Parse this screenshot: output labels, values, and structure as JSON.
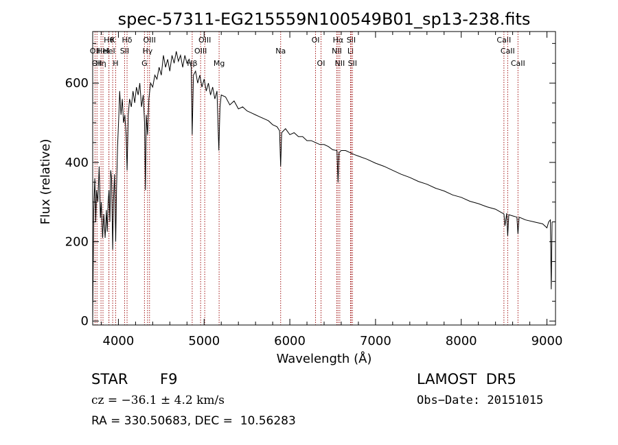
{
  "chart_data": {
    "type": "line",
    "title": "spec-57311-EG215559N100549B01_sp13-238.fits",
    "xlabel": "Wavelength (Å)",
    "ylabel": "Flux (relative)",
    "xlim": [
      3700,
      9100
    ],
    "ylim": [
      -10,
      730
    ],
    "x_ticks": [
      4000,
      5000,
      6000,
      7000,
      8000,
      9000
    ],
    "y_ticks": [
      0,
      200,
      400,
      600
    ],
    "grid": false,
    "line_color": "#000000",
    "marker_color": "#a01010",
    "series": [
      {
        "points": [
          [
            3700,
            0
          ],
          [
            3712,
            280
          ],
          [
            3725,
            360
          ],
          [
            3735,
            250
          ],
          [
            3745,
            330
          ],
          [
            3760,
            300
          ],
          [
            3775,
            390
          ],
          [
            3790,
            260
          ],
          [
            3800,
            300
          ],
          [
            3815,
            210
          ],
          [
            3830,
            270
          ],
          [
            3845,
            210
          ],
          [
            3860,
            280
          ],
          [
            3870,
            225
          ],
          [
            3880,
            300
          ],
          [
            3890,
            330
          ],
          [
            3900,
            250
          ],
          [
            3910,
            380
          ],
          [
            3920,
            360
          ],
          [
            3933,
            180
          ],
          [
            3942,
            300
          ],
          [
            3955,
            370
          ],
          [
            3968,
            200
          ],
          [
            3978,
            330
          ],
          [
            3990,
            440
          ],
          [
            4005,
            520
          ],
          [
            4015,
            580
          ],
          [
            4030,
            520
          ],
          [
            4045,
            560
          ],
          [
            4060,
            500
          ],
          [
            4075,
            520
          ],
          [
            4090,
            470
          ],
          [
            4101,
            380
          ],
          [
            4115,
            520
          ],
          [
            4130,
            560
          ],
          [
            4150,
            540
          ],
          [
            4170,
            580
          ],
          [
            4190,
            550
          ],
          [
            4210,
            590
          ],
          [
            4230,
            570
          ],
          [
            4250,
            600
          ],
          [
            4270,
            540
          ],
          [
            4290,
            570
          ],
          [
            4305,
            500
          ],
          [
            4315,
            330
          ],
          [
            4325,
            520
          ],
          [
            4340,
            470
          ],
          [
            4355,
            560
          ],
          [
            4375,
            600
          ],
          [
            4400,
            590
          ],
          [
            4425,
            620
          ],
          [
            4450,
            610
          ],
          [
            4475,
            640
          ],
          [
            4500,
            620
          ],
          [
            4525,
            670
          ],
          [
            4550,
            640
          ],
          [
            4575,
            660
          ],
          [
            4600,
            630
          ],
          [
            4625,
            670
          ],
          [
            4650,
            650
          ],
          [
            4675,
            680
          ],
          [
            4700,
            655
          ],
          [
            4725,
            670
          ],
          [
            4750,
            640
          ],
          [
            4775,
            670
          ],
          [
            4800,
            650
          ],
          [
            4825,
            660
          ],
          [
            4850,
            640
          ],
          [
            4861,
            470
          ],
          [
            4875,
            620
          ],
          [
            4900,
            630
          ],
          [
            4925,
            600
          ],
          [
            4950,
            620
          ],
          [
            4975,
            590
          ],
          [
            5000,
            610
          ],
          [
            5025,
            580
          ],
          [
            5050,
            600
          ],
          [
            5075,
            570
          ],
          [
            5100,
            590
          ],
          [
            5125,
            560
          ],
          [
            5150,
            580
          ],
          [
            5172,
            430
          ],
          [
            5185,
            540
          ],
          [
            5200,
            570
          ],
          [
            5250,
            565
          ],
          [
            5300,
            545
          ],
          [
            5350,
            555
          ],
          [
            5400,
            535
          ],
          [
            5450,
            540
          ],
          [
            5500,
            530
          ],
          [
            5550,
            525
          ],
          [
            5600,
            520
          ],
          [
            5650,
            515
          ],
          [
            5700,
            510
          ],
          [
            5750,
            505
          ],
          [
            5800,
            495
          ],
          [
            5850,
            490
          ],
          [
            5880,
            480
          ],
          [
            5893,
            390
          ],
          [
            5905,
            475
          ],
          [
            5950,
            485
          ],
          [
            6000,
            470
          ],
          [
            6050,
            475
          ],
          [
            6100,
            465
          ],
          [
            6150,
            465
          ],
          [
            6200,
            455
          ],
          [
            6250,
            455
          ],
          [
            6300,
            450
          ],
          [
            6350,
            445
          ],
          [
            6400,
            445
          ],
          [
            6450,
            440
          ],
          [
            6500,
            432
          ],
          [
            6550,
            430
          ],
          [
            6563,
            350
          ],
          [
            6575,
            425
          ],
          [
            6600,
            430
          ],
          [
            6650,
            430
          ],
          [
            6700,
            425
          ],
          [
            6750,
            420
          ],
          [
            6800,
            416
          ],
          [
            6900,
            408
          ],
          [
            7000,
            398
          ],
          [
            7100,
            390
          ],
          [
            7200,
            380
          ],
          [
            7300,
            370
          ],
          [
            7400,
            362
          ],
          [
            7500,
            352
          ],
          [
            7600,
            345
          ],
          [
            7700,
            335
          ],
          [
            7800,
            328
          ],
          [
            7900,
            318
          ],
          [
            8000,
            312
          ],
          [
            8100,
            302
          ],
          [
            8200,
            296
          ],
          [
            8300,
            288
          ],
          [
            8400,
            282
          ],
          [
            8498,
            270
          ],
          [
            8510,
            240
          ],
          [
            8530,
            272
          ],
          [
            8542,
            215
          ],
          [
            8555,
            268
          ],
          [
            8600,
            265
          ],
          [
            8650,
            262
          ],
          [
            8662,
            220
          ],
          [
            8675,
            262
          ],
          [
            8750,
            255
          ],
          [
            8850,
            250
          ],
          [
            8950,
            245
          ],
          [
            9000,
            235
          ],
          [
            9020,
            250
          ],
          [
            9040,
            255
          ],
          [
            9050,
            80
          ],
          [
            9060,
            250
          ]
        ]
      }
    ],
    "line_markers": [
      {
        "wave": 3727,
        "label": "OII",
        "row": 2
      },
      {
        "wave": 3750,
        "label": "OII",
        "row": 3
      },
      {
        "wave": 3797,
        "label": "Hη",
        "row": 3
      },
      {
        "wave": 3820,
        "label": "HeI",
        "row": 2
      },
      {
        "wave": 3889,
        "label": "Hθ",
        "row": 1
      },
      {
        "wave": 3889,
        "label": "HeI",
        "row": 2
      },
      {
        "wave": 3933,
        "label": "K",
        "row": 1
      },
      {
        "wave": 3968,
        "label": "H",
        "row": 3
      },
      {
        "wave": 4072,
        "label": "SII",
        "row": 2
      },
      {
        "wave": 4101,
        "label": "Hδ",
        "row": 1
      },
      {
        "wave": 4304,
        "label": "G",
        "row": 3
      },
      {
        "wave": 4340,
        "label": "Hγ",
        "row": 2
      },
      {
        "wave": 4363,
        "label": "OIII",
        "row": 1
      },
      {
        "wave": 4861,
        "label": "Hβ",
        "row": 3
      },
      {
        "wave": 4959,
        "label": "OIII",
        "row": 2
      },
      {
        "wave": 5007,
        "label": "OIII",
        "row": 1
      },
      {
        "wave": 5175,
        "label": "Mg",
        "row": 3
      },
      {
        "wave": 5893,
        "label": "Na",
        "row": 2
      },
      {
        "wave": 6300,
        "label": "OI",
        "row": 1
      },
      {
        "wave": 6364,
        "label": "OI",
        "row": 3
      },
      {
        "wave": 6548,
        "label": "NII",
        "row": 2
      },
      {
        "wave": 6563,
        "label": "Hα",
        "row": 1
      },
      {
        "wave": 6583,
        "label": "NII",
        "row": 3
      },
      {
        "wave": 6708,
        "label": "Li",
        "row": 2
      },
      {
        "wave": 6716,
        "label": "SII",
        "row": 1
      },
      {
        "wave": 6731,
        "label": "SII",
        "row": 3
      },
      {
        "wave": 8498,
        "label": "CaII",
        "row": 1
      },
      {
        "wave": 8542,
        "label": "CaII",
        "row": 2
      },
      {
        "wave": 8662,
        "label": "CaII",
        "row": 3
      }
    ]
  },
  "info": {
    "class_label": "STAR",
    "subclass": "F9",
    "survey": "LAMOST  DR5",
    "redshift_line": "cz = −36.1 ± 4.2 km/s",
    "obs_date": "Obs−Date: 20151015",
    "coords": "RA = 330.50683, DEC =  10.56283"
  }
}
